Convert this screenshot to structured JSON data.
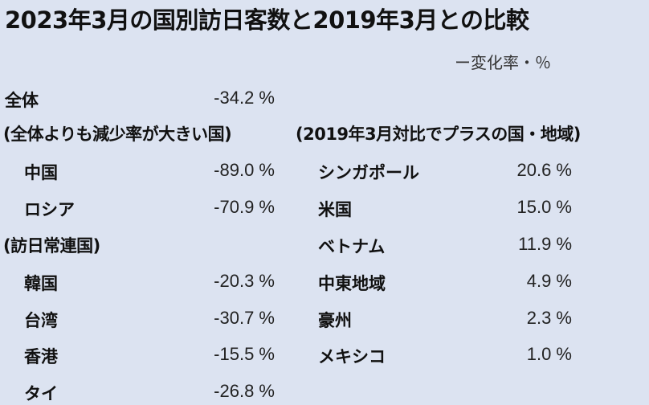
{
  "title": "2023年3月の国別訪日客数と2019年3月との比較",
  "subtitle": "ー変化率・％",
  "total": {
    "label": "全体",
    "value": "-34.2 %"
  },
  "left_section": {
    "heading": "(全体よりも減少率が大きい国)",
    "rows": [
      {
        "name": "中国",
        "value": "-89.0 %"
      },
      {
        "name": "ロシア",
        "value": "-70.9 %"
      }
    ]
  },
  "regular_section": {
    "heading": "(訪日常連国)",
    "rows": [
      {
        "name": "韓国",
        "value": "-20.3 %"
      },
      {
        "name": "台湾",
        "value": "-30.7 %"
      },
      {
        "name": "香港",
        "value": "-15.5 %"
      },
      {
        "name": "タイ",
        "value": "-26.8 %"
      }
    ]
  },
  "right_section": {
    "heading": "(2019年3月対比でプラスの国・地域)",
    "rows": [
      {
        "name": "シンガポール",
        "value": "20.6 %"
      },
      {
        "name": "米国",
        "value": "15.0 %"
      },
      {
        "name": "ベトナム",
        "value": "11.9 %"
      },
      {
        "name": "中東地域",
        "value": "4.9 %"
      },
      {
        "name": "豪州",
        "value": "2.3 %"
      },
      {
        "name": "メキシコ",
        "value": "1.0 %"
      }
    ]
  }
}
